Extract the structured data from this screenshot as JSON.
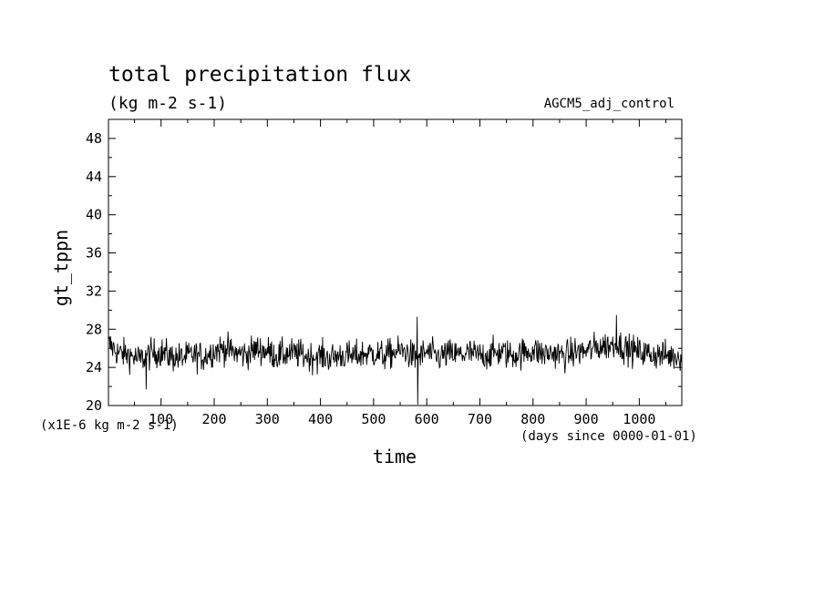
{
  "chart_data": {
    "type": "line",
    "title": "total precipitation flux",
    "subtitle": "(kg m-2 s-1)",
    "dataset_label": "AGCM5_adj_control",
    "ylabel": "gt_tppn",
    "xlabel": "time",
    "y_scale_note": "(x1E-6 kg m-2 s-1)",
    "x_units_note": "(days since 0000-01-01)",
    "xlim": [
      1,
      1080
    ],
    "ylim": [
      20,
      50
    ],
    "x_ticks": [
      100,
      200,
      300,
      400,
      500,
      600,
      700,
      800,
      900,
      1000
    ],
    "y_ticks": [
      20,
      24,
      28,
      32,
      36,
      40,
      44,
      48
    ],
    "grid": false,
    "line_color": "#000000",
    "series": [
      {
        "x": [
          1,
          20,
          40,
          60,
          80,
          100,
          120,
          140,
          160,
          180,
          200,
          220,
          240,
          260,
          280,
          300,
          320,
          340,
          360,
          380,
          400,
          420,
          440,
          460,
          480,
          500,
          520,
          540,
          560,
          580,
          600,
          620,
          640,
          660,
          680,
          700,
          720,
          740,
          760,
          780,
          800,
          820,
          840,
          860,
          880,
          900,
          920,
          940,
          960,
          980,
          1000,
          1020,
          1040,
          1060,
          1080
        ],
        "values": [
          26.5,
          25.5,
          25.3,
          24.8,
          25.4,
          25.6,
          25.1,
          25.0,
          25.3,
          25.1,
          25.8,
          26.0,
          25.5,
          25.4,
          25.9,
          25.7,
          25.2,
          25.5,
          25.4,
          25.1,
          25.2,
          25.0,
          25.3,
          25.1,
          25.4,
          25.5,
          25.2,
          25.6,
          25.7,
          24.9,
          25.6,
          25.1,
          25.4,
          25.3,
          25.5,
          25.2,
          25.4,
          25.6,
          25.3,
          25.5,
          25.8,
          25.4,
          25.5,
          25.2,
          25.6,
          25.7,
          26.1,
          26.3,
          26.4,
          25.9,
          25.6,
          25.4,
          25.3,
          25.2,
          25.2
        ]
      }
    ]
  }
}
